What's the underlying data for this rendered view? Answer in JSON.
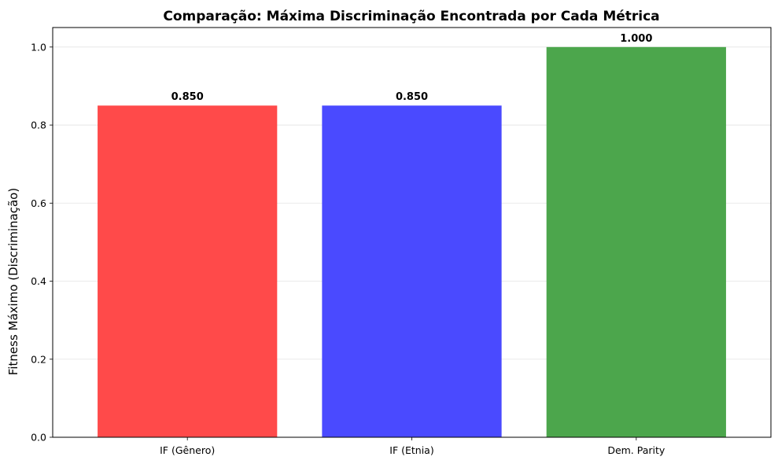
{
  "chart_data": {
    "type": "bar",
    "title": "Comparação: Máxima Discriminação Encontrada por Cada Métrica",
    "xlabel": "",
    "ylabel": "Fitness Máximo (Discriminação)",
    "categories": [
      "IF (Gênero)",
      "IF (Etnia)",
      "Dem. Parity"
    ],
    "values": [
      0.85,
      0.85,
      1.0
    ],
    "value_labels": [
      "0.850",
      "0.850",
      "1.000"
    ],
    "colors": [
      "#ff4a4a",
      "#4a4aff",
      "#4ca64c"
    ],
    "ylim": [
      0,
      1.05
    ],
    "yticks": [
      0.0,
      0.2,
      0.4,
      0.6,
      0.8,
      1.0
    ],
    "ytick_labels": [
      "0.0",
      "0.2",
      "0.4",
      "0.6",
      "0.8",
      "1.0"
    ],
    "grid": "horizontal",
    "legend": "none"
  }
}
